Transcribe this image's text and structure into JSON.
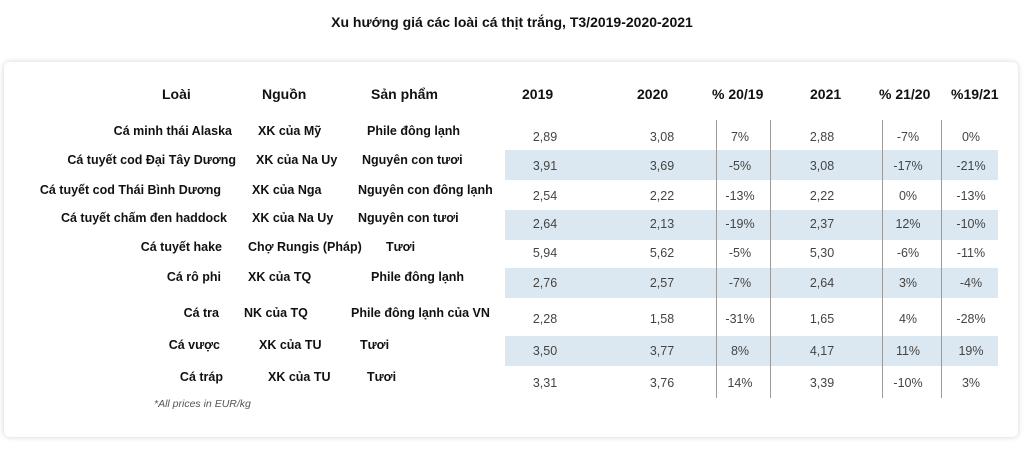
{
  "title": "Xu hướng giá các loài cá thịt trắng, T3/2019-2020-2021",
  "headers": {
    "loai": "Loài",
    "nguon": "Nguồn",
    "san_pham": "Sản phẩm",
    "y2019": "2019",
    "y2020": "2020",
    "p2019": "% 20/19",
    "y2021": "2021",
    "p2120": "% 21/20",
    "p1921": "%19/21"
  },
  "rows": [
    {
      "loai": "Cá minh thái Alaska",
      "nguon": "XK của Mỹ",
      "san_pham": "Phile đông lạnh",
      "v2019": "2,89",
      "v2020": "3,08",
      "p1": "7%",
      "v2021": "2,88",
      "p2": "-7%",
      "p3": "0%"
    },
    {
      "loai": "Cá tuyết cod Đại Tây Dương",
      "nguon": "XK của Na Uy",
      "san_pham": "Nguyên con tươi",
      "v2019": "3,91",
      "v2020": "3,69",
      "p1": "-5%",
      "v2021": "3,08",
      "p2": "-17%",
      "p3": "-21%"
    },
    {
      "loai": "Cá tuyết cod  Thái Bình Dương",
      "nguon": "XK của Nga",
      "san_pham": "Nguyên con đông lạnh",
      "v2019": "2,54",
      "v2020": "2,22",
      "p1": "-13%",
      "v2021": "2,22",
      "p2": "0%",
      "p3": "-13%"
    },
    {
      "loai": "Cá tuyết chấm đen haddock",
      "nguon": "XK của Na Uy",
      "san_pham": "Nguyên con tươi",
      "v2019": "2,64",
      "v2020": "2,13",
      "p1": "-19%",
      "v2021": "2,37",
      "p2": "12%",
      "p3": "-10%"
    },
    {
      "loai": "Cá tuyết hake",
      "nguon": "Chợ Rungis (Pháp)",
      "san_pham": "Tươi",
      "v2019": "5,94",
      "v2020": "5,62",
      "p1": "-5%",
      "v2021": "5,30",
      "p2": "-6%",
      "p3": "-11%"
    },
    {
      "loai": "Cá rô phi",
      "nguon": "XK của TQ",
      "san_pham": "Phile đông lạnh",
      "v2019": "2,76",
      "v2020": "2,57",
      "p1": "-7%",
      "v2021": "2,64",
      "p2": "3%",
      "p3": "-4%"
    },
    {
      "loai": "Cá tra",
      "nguon": "NK của TQ",
      "san_pham": "Phile đông lạnh của VN",
      "v2019": "2,28",
      "v2020": "1,58",
      "p1": "-31%",
      "v2021": "1,65",
      "p2": "4%",
      "p3": "-28%"
    },
    {
      "loai": "Cá vược",
      "nguon": "XK của TU",
      "san_pham": "Tươi",
      "v2019": "3,50",
      "v2020": "3,77",
      "p1": "8%",
      "v2021": "4,17",
      "p2": "11%",
      "p3": "19%"
    },
    {
      "loai": "Cá tráp",
      "nguon": "XK của TU",
      "san_pham": "Tươi",
      "v2019": "3,31",
      "v2020": "3,76",
      "p1": "14%",
      "v2021": "3,39",
      "p2": "-10%",
      "p3": "3%"
    }
  ],
  "footnote": "*All prices in EUR/kg"
}
